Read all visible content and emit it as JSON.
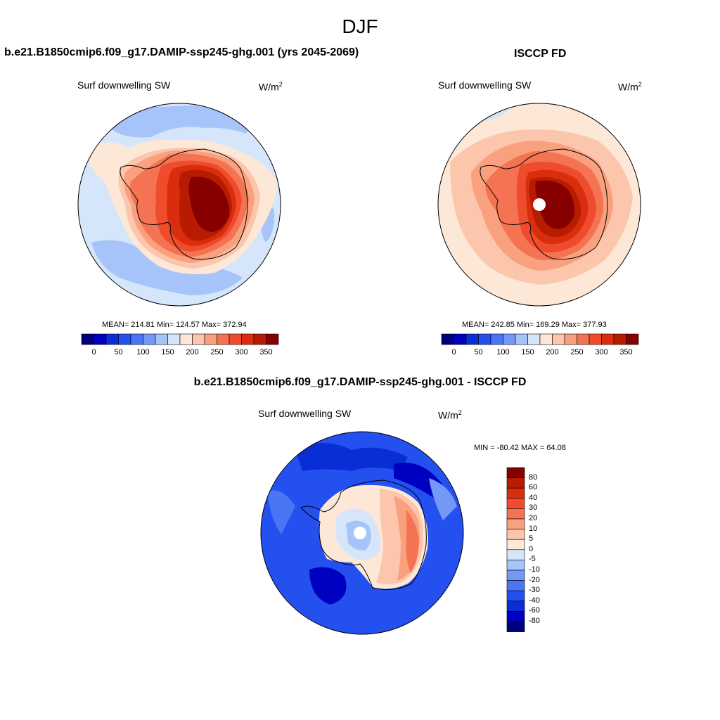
{
  "season": "DJF",
  "variable_label": "Surf downwelling SW",
  "units_base": "W/m",
  "units_exp": "2",
  "panels": {
    "model": {
      "title": "b.e21.B1850cmip6.f09_g17.DAMIP-ssp245-ghg.001 (yrs 2045-2069)",
      "mean": "214.81",
      "min": "124.57",
      "max": "372.94",
      "stats_text": "MEAN= 214.81  Min= 124.57  Max= 372.94"
    },
    "obs": {
      "title": "ISCCP FD",
      "mean": "242.85",
      "min": "169.29",
      "max": "377.93",
      "stats_text": "MEAN= 242.85  Min= 169.29  Max= 377.93"
    },
    "diff": {
      "title": "b.e21.B1850cmip6.f09_g17.DAMIP-ssp245-ghg.001 - ISCCP FD",
      "stats_text": "MIN = -80.42 MAX =  64.08"
    }
  },
  "colorbar_abs": {
    "colors": [
      "#00007f",
      "#0000c0",
      "#0a2ed6",
      "#2450f0",
      "#4a76f5",
      "#7398f5",
      "#a6c4fa",
      "#d5e6fb",
      "#fde7d6",
      "#fcc6ac",
      "#f9a07f",
      "#f47352",
      "#ee4c2c",
      "#d92d0e",
      "#b71c00",
      "#870000"
    ],
    "labels": [
      "0",
      "50",
      "100",
      "150",
      "200",
      "250",
      "300",
      "350"
    ]
  },
  "colorbar_diff": {
    "colors": [
      "#870000",
      "#b71c00",
      "#d92d0e",
      "#ee4c2c",
      "#f47352",
      "#f9a07f",
      "#fcc6ac",
      "#fde7d6",
      "#d5e6fb",
      "#a6c4fa",
      "#7398f5",
      "#4a76f5",
      "#2450f0",
      "#0a2ed6",
      "#0000c0",
      "#00007f"
    ],
    "labels": [
      "80",
      "60",
      "40",
      "30",
      "20",
      "10",
      "5",
      "0",
      "-5",
      "-10",
      "-20",
      "-30",
      "-40",
      "-60",
      "-80"
    ]
  },
  "map_colors": {
    "ocean_light": "#d5e6fb",
    "ocean_mid": "#a6c4fa",
    "peach": "#fde7d6",
    "salmon": "#fcc6ac",
    "orange_light": "#f9a07f",
    "orange": "#f47352",
    "red_orange": "#ee4c2c",
    "red": "#d92d0e",
    "dark_red": "#b71c00",
    "maroon": "#870000",
    "blue_deep": "#0000c0",
    "blue": "#0a2ed6",
    "blue_mid": "#2450f0",
    "blue_light": "#4a76f5",
    "blue_pale": "#7398f5"
  }
}
